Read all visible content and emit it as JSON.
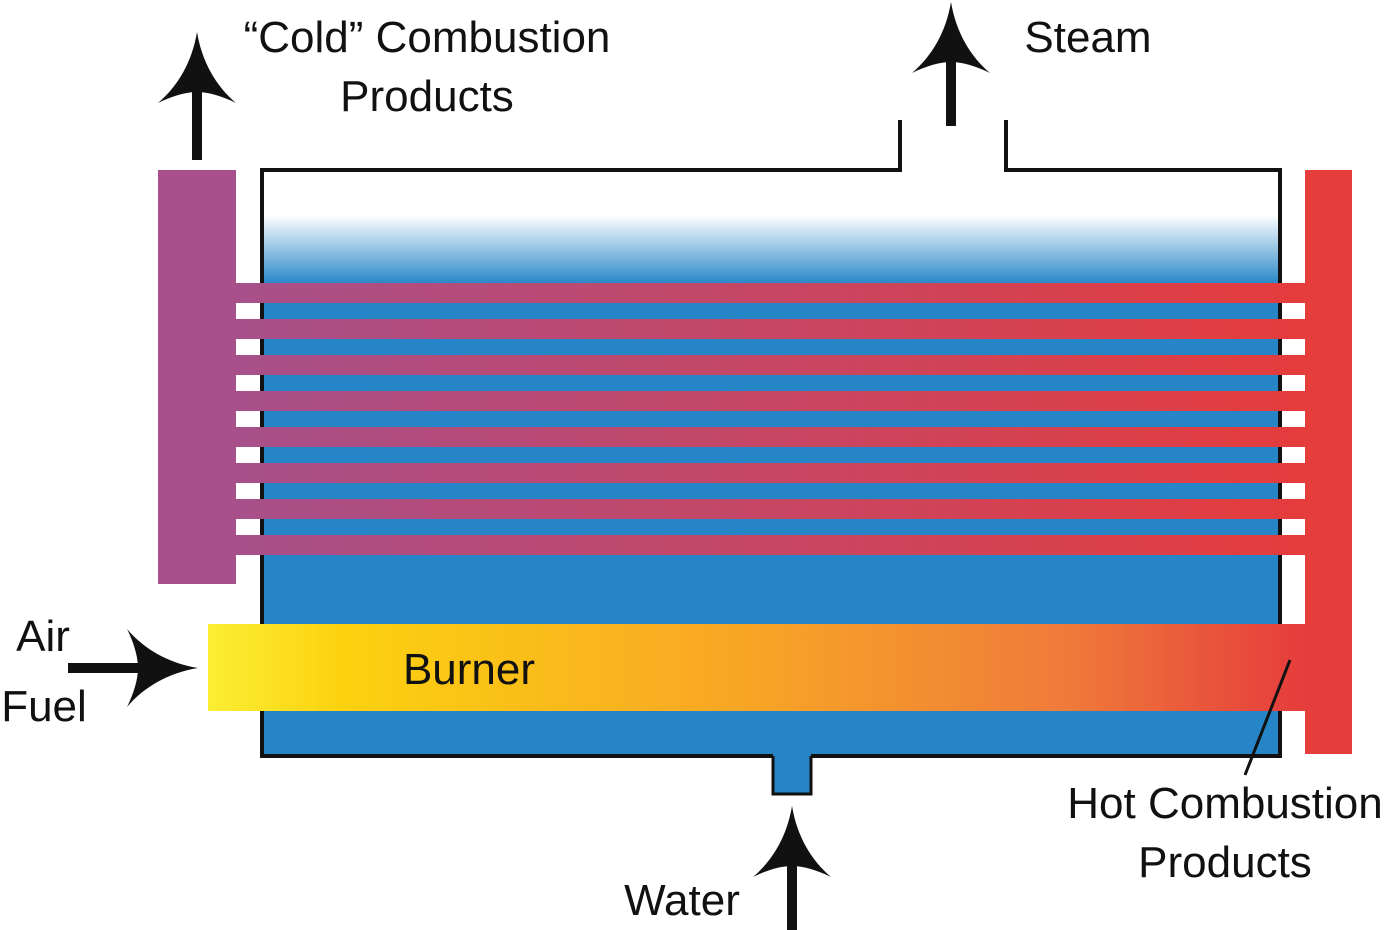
{
  "labels": {
    "cold_line1": "“Cold” Combustion",
    "cold_line2": "Products",
    "steam": "Steam",
    "air": "Air",
    "fuel": "Fuel",
    "burner": "Burner",
    "water": "Water",
    "hot_line1": "Hot Combustion",
    "hot_line2": "Products"
  },
  "colors": {
    "water": "#2585c7",
    "cold_header": "#a8508b",
    "hot_header": "#e53c3c",
    "tube_cold": "#a8508b",
    "tube_hot": "#e53c3c",
    "burner_start": "#fbee33",
    "burner_mid": "#f8a426",
    "burner_end": "#e53c3c",
    "outline": "#111111"
  }
}
